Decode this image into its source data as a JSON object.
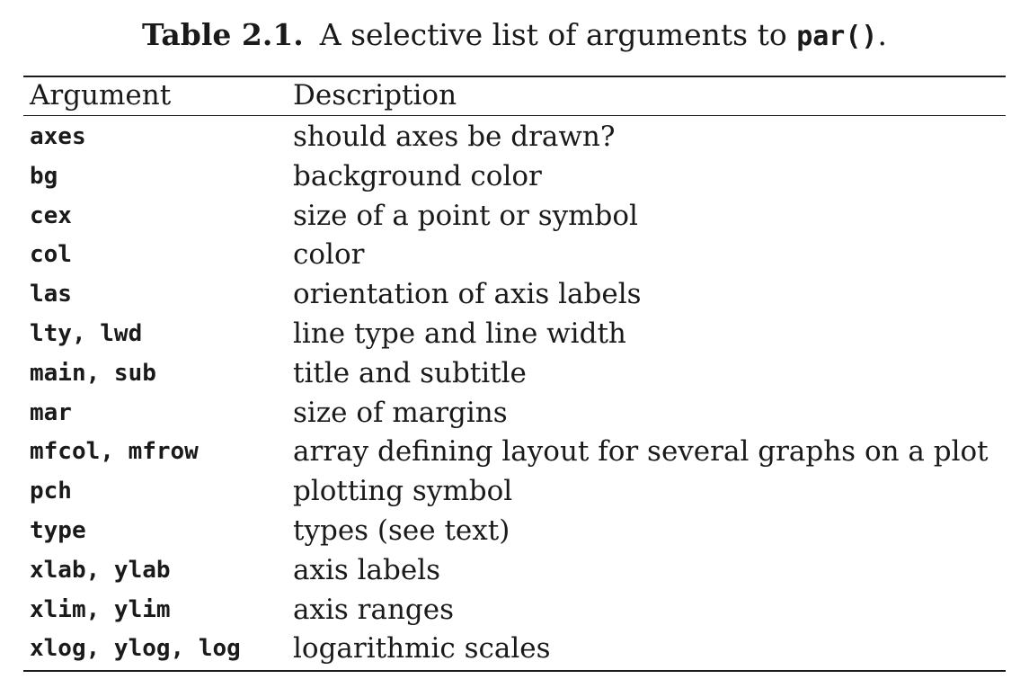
{
  "caption": {
    "label": "Table 2.1.",
    "text_before": "A selective list of arguments to ",
    "code": "par()",
    "text_after": "."
  },
  "table": {
    "headers": {
      "argument": "Argument",
      "description": "Description"
    },
    "rows": [
      {
        "argument": "axes",
        "description": "should axes be drawn?"
      },
      {
        "argument": "bg",
        "description": "background color"
      },
      {
        "argument": "cex",
        "description": "size of a point or symbol"
      },
      {
        "argument": "col",
        "description": "color"
      },
      {
        "argument": "las",
        "description": "orientation of axis labels"
      },
      {
        "argument": "lty, lwd",
        "description": "line type and line width"
      },
      {
        "argument": "main, sub",
        "description": "title and subtitle"
      },
      {
        "argument": "mar",
        "description": "size of margins"
      },
      {
        "argument": "mfcol, mfrow",
        "description": "array defining layout for several graphs on a plot"
      },
      {
        "argument": "pch",
        "description": "plotting symbol"
      },
      {
        "argument": "type",
        "description": "types (see text)"
      },
      {
        "argument": "xlab, ylab",
        "description": "axis labels"
      },
      {
        "argument": "xlim, ylim",
        "description": "axis ranges"
      },
      {
        "argument": "xlog, ylog, log",
        "description": "logarithmic scales"
      }
    ]
  }
}
